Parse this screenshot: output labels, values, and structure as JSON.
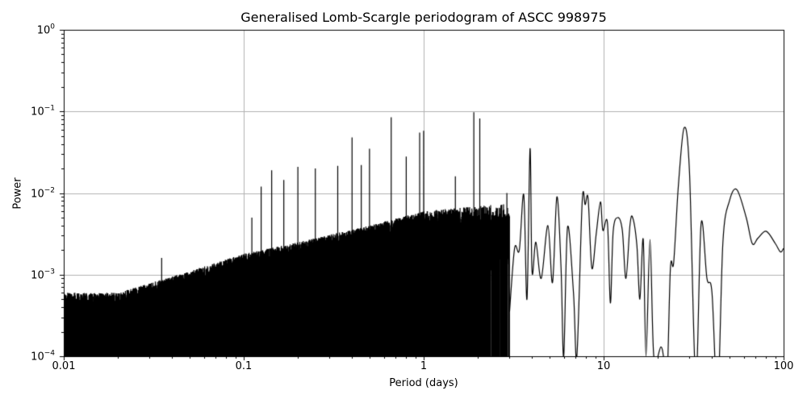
{
  "chart_data": {
    "type": "line",
    "title": "Generalised Lomb-Scargle periodogram of ASCC 998975",
    "xlabel": "Period (days)",
    "ylabel": "Power",
    "xscale": "log",
    "yscale": "log",
    "xlim": [
      0.01,
      100
    ],
    "ylim": [
      0.0001,
      1
    ],
    "grid": true,
    "legend": null,
    "line_color": "#000000",
    "grid_color": "#b0b0b0",
    "xticks": [
      {
        "value": 0.01,
        "label": "0.01"
      },
      {
        "value": 0.1,
        "label": "0.1"
      },
      {
        "value": 1,
        "label": "1"
      },
      {
        "value": 10,
        "label": "10"
      },
      {
        "value": 100,
        "label": "100"
      }
    ],
    "yticks": [
      {
        "value": 1,
        "base": "10",
        "exp": "0"
      },
      {
        "value": 0.1,
        "base": "10",
        "exp": "−1"
      },
      {
        "value": 0.01,
        "base": "10",
        "exp": "−2"
      },
      {
        "value": 0.001,
        "base": "10",
        "exp": "−3"
      },
      {
        "value": 0.0001,
        "base": "10",
        "exp": "−4"
      }
    ],
    "noise_envelope": {
      "description": "Dense noise floor rising with period; upper envelope values (period, power)",
      "points": [
        [
          0.01,
          0.0006
        ],
        [
          0.02,
          0.0006
        ],
        [
          0.05,
          0.0011
        ],
        [
          0.1,
          0.0018
        ],
        [
          0.2,
          0.0025
        ],
        [
          0.5,
          0.004
        ],
        [
          1.0,
          0.006
        ]
      ]
    },
    "notable_peaks": [
      {
        "period": 0.035,
        "power": 0.0016
      },
      {
        "period": 0.111,
        "power": 0.005
      },
      {
        "period": 0.125,
        "power": 0.012
      },
      {
        "period": 0.143,
        "power": 0.019
      },
      {
        "period": 0.167,
        "power": 0.0145
      },
      {
        "period": 0.2,
        "power": 0.021
      },
      {
        "period": 0.25,
        "power": 0.02
      },
      {
        "period": 0.333,
        "power": 0.0215
      },
      {
        "period": 0.4,
        "power": 0.048
      },
      {
        "period": 0.45,
        "power": 0.022
      },
      {
        "period": 0.5,
        "power": 0.035
      },
      {
        "period": 0.66,
        "power": 0.085
      },
      {
        "period": 0.8,
        "power": 0.028
      },
      {
        "period": 0.95,
        "power": 0.055
      },
      {
        "period": 1.0,
        "power": 0.058
      },
      {
        "period": 1.5,
        "power": 0.016
      },
      {
        "period": 1.9,
        "power": 0.098
      },
      {
        "period": 2.05,
        "power": 0.082
      },
      {
        "period": 2.9,
        "power": 0.01
      },
      {
        "period": 3.9,
        "power": 0.035
      },
      {
        "period": 5.5,
        "power": 0.009
      },
      {
        "period": 7.8,
        "power": 0.0085
      },
      {
        "period": 9.5,
        "power": 0.0078
      },
      {
        "period": 12,
        "power": 0.005
      },
      {
        "period": 14.5,
        "power": 0.005
      },
      {
        "period": 16.5,
        "power": 0.0027
      },
      {
        "period": 18,
        "power": 0.0027
      },
      {
        "period": 24.5,
        "power": 0.0014
      },
      {
        "period": 28,
        "power": 0.063
      },
      {
        "period": 35,
        "power": 0.0042
      },
      {
        "period": 40,
        "power": 0.0006
      },
      {
        "period": 55,
        "power": 0.011
      },
      {
        "period": 80,
        "power": 0.0034
      }
    ],
    "smooth_tail": [
      [
        3.0,
        0.00035
      ],
      [
        3.2,
        0.0021
      ],
      [
        3.4,
        0.002
      ],
      [
        3.6,
        0.0095
      ],
      [
        3.75,
        0.0005
      ],
      [
        3.9,
        0.035
      ],
      [
        4.0,
        0.0011
      ],
      [
        4.2,
        0.0025
      ],
      [
        4.5,
        0.0009
      ],
      [
        4.9,
        0.004
      ],
      [
        5.2,
        0.0008
      ],
      [
        5.5,
        0.009
      ],
      [
        5.8,
        0.0012
      ],
      [
        6.0,
        0.0001
      ],
      [
        6.3,
        0.0038
      ],
      [
        6.8,
        0.0006
      ],
      [
        7.1,
        0.0001
      ],
      [
        7.6,
        0.0078
      ],
      [
        7.9,
        0.0072
      ],
      [
        8.2,
        0.0085
      ],
      [
        8.6,
        0.0012
      ],
      [
        9.1,
        0.0032
      ],
      [
        9.6,
        0.0078
      ],
      [
        9.9,
        0.0035
      ],
      [
        10.5,
        0.0043
      ],
      [
        10.9,
        0.00045
      ],
      [
        11.3,
        0.0034
      ],
      [
        12.0,
        0.005
      ],
      [
        12.7,
        0.0035
      ],
      [
        13.3,
        0.0009
      ],
      [
        14.0,
        0.004
      ],
      [
        14.5,
        0.005
      ],
      [
        15.3,
        0.0023
      ],
      [
        15.9,
        0.0005
      ],
      [
        16.6,
        0.0027
      ],
      [
        17.2,
        0.0001
      ],
      [
        18.1,
        0.0027
      ],
      [
        19.0,
        0.0001
      ],
      [
        20.8,
        0.00013
      ],
      [
        21.5,
        0.0001
      ],
      [
        22.5,
        5e-05
      ],
      [
        23.5,
        0.0012
      ],
      [
        24.5,
        0.0014
      ],
      [
        26.0,
        0.012
      ],
      [
        28.0,
        0.063
      ],
      [
        30.0,
        0.018
      ],
      [
        32.5,
        5e-05
      ],
      [
        34.8,
        0.0042
      ],
      [
        37.5,
        0.0009
      ],
      [
        40.0,
        0.0006
      ],
      [
        43.0,
        3e-05
      ],
      [
        46.0,
        0.0025
      ],
      [
        50.0,
        0.008
      ],
      [
        55.0,
        0.011
      ],
      [
        62.0,
        0.005
      ],
      [
        67.0,
        0.0024
      ],
      [
        72.0,
        0.0028
      ],
      [
        80.0,
        0.0034
      ],
      [
        90.0,
        0.0024
      ],
      [
        96.0,
        0.0019
      ],
      [
        100.0,
        0.0021
      ]
    ]
  }
}
